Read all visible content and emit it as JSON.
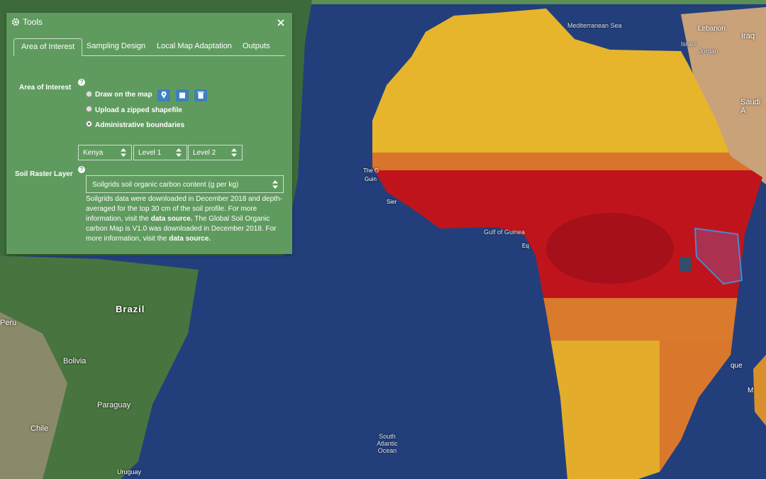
{
  "panel": {
    "title": "Tools",
    "help": "?",
    "tabs": [
      "Area of Interest",
      "Sampling Design",
      "Local Map Adaptation",
      "Outputs"
    ],
    "area_of_interest": {
      "label": "Area of Interest",
      "options": [
        "Draw on the map",
        "Upload a zipped shapefile",
        "Administrative boundaries"
      ]
    },
    "admin_selects": [
      "Kenya",
      "Level 1",
      "Level 2"
    ],
    "soil_raster": {
      "label": "Soil Raster Layer",
      "select": "Soilgrids soil organic carbon content (g per kg)",
      "description": [
        "Soilgrids data were downloaded in December 2018 and depth-averaged for the top 30 cm of the soil profile. For more information, visit the ",
        "data source.",
        " The Global Soil Organic carbon Map is V1.0 was downloaded in December 2018. For more information, visit the ",
        "data source."
      ]
    }
  },
  "map_labels": [
    "Mediterranean Sea",
    "Lebanon",
    "Iraq",
    "Israel",
    "Jordan",
    "Saudi A",
    "Brazil",
    "Peru",
    "Bolivia",
    "Paraguay",
    "Chile",
    "Uruguay",
    "Gulf of Guinea",
    "South Atlantic Ocean",
    "The G",
    "Guin",
    "Sier",
    "Eq",
    "que",
    "M"
  ]
}
